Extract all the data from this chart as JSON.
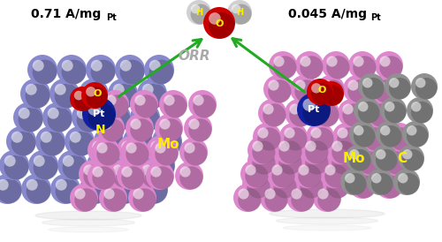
{
  "bg_color": "#ffffff",
  "left_label": "0.71 A/mg",
  "right_label": "0.045 A/mg",
  "sub_label": "Pt",
  "orr_label": "ORR",
  "water_O_color": "#cc0000",
  "water_H_color": "#d0d0d0",
  "Pt_color": "#1020a0",
  "O_color": "#cc0000",
  "label_color": "#ffee00",
  "left_purple_color": "#8888cc",
  "left_pink_color": "#dd88cc",
  "right_pink_color": "#dd88cc",
  "right_gray_color": "#909090",
  "arrow_color": "#22aa22",
  "orr_color": "#aaaaaa",
  "text_color": "#000000",
  "reflect_color": "#cccccc"
}
